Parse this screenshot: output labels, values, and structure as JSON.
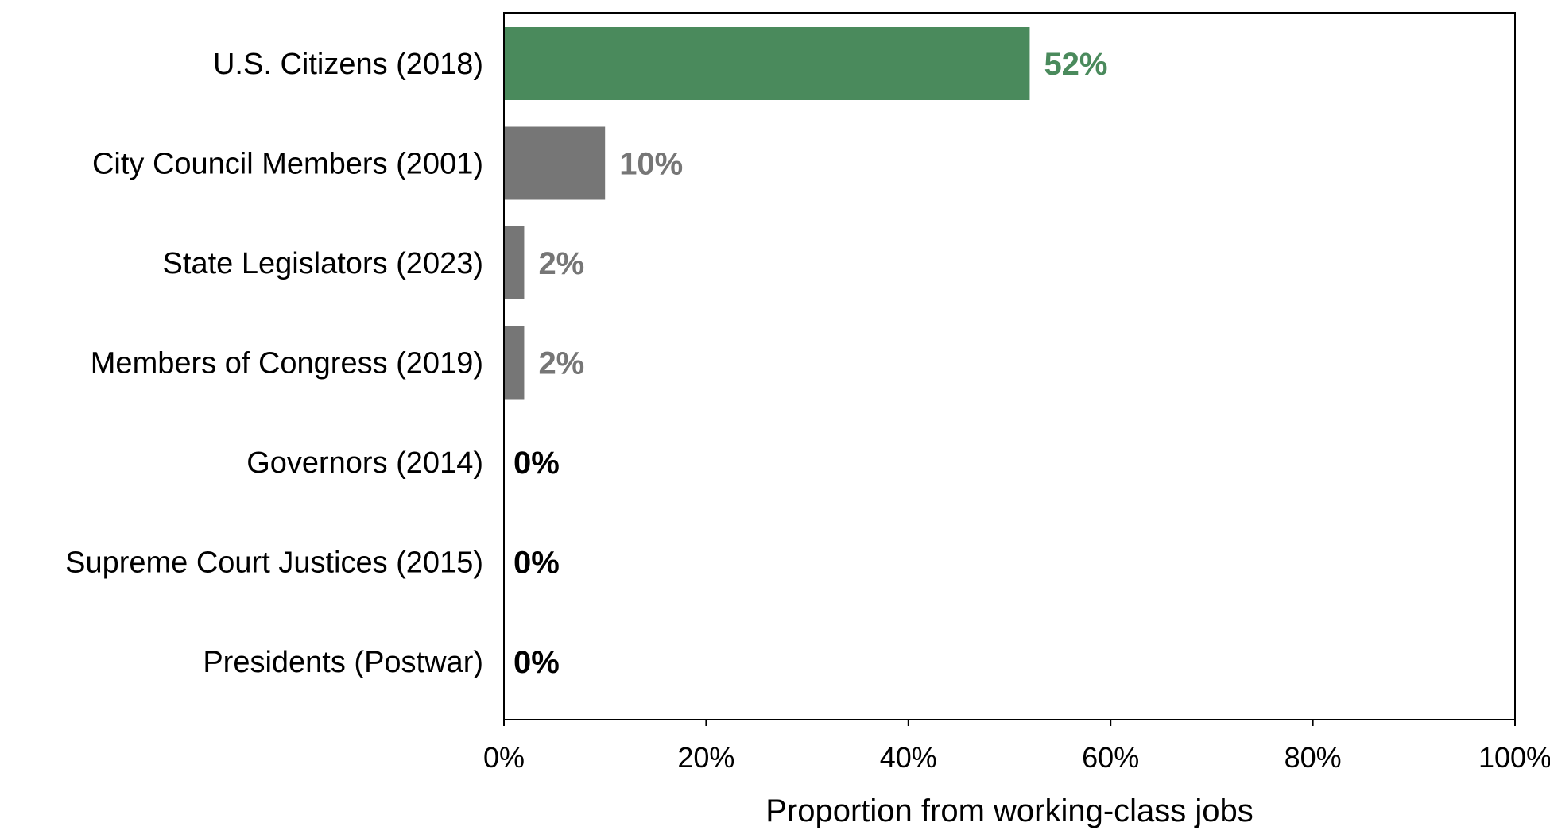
{
  "chart_data": {
    "type": "bar",
    "orientation": "horizontal",
    "categories": [
      "U.S. Citizens (2018)",
      "City Council Members (2001)",
      "State Legislators (2023)",
      "Members of Congress (2019)",
      "Governors (2014)",
      "Supreme Court Justices (2015)",
      "Presidents (Postwar)"
    ],
    "values": [
      52,
      10,
      2,
      2,
      0,
      0,
      0
    ],
    "value_labels": [
      "52%",
      "10%",
      "2%",
      "2%",
      "0%",
      "0%",
      "0%"
    ],
    "bar_colors": [
      "#4a8a5c",
      "#767676",
      "#767676",
      "#767676",
      "#767676",
      "#767676",
      "#767676"
    ],
    "label_colors": [
      "#4a8a5c",
      "#767676",
      "#767676",
      "#767676",
      "#000000",
      "#000000",
      "#000000"
    ],
    "xlim": [
      0,
      100
    ],
    "xticks": [
      0,
      20,
      40,
      60,
      80,
      100
    ],
    "xtick_labels": [
      "0%",
      "20%",
      "40%",
      "60%",
      "80%",
      "100%"
    ],
    "xlabel": "Proportion from working-class jobs",
    "ylabel": "",
    "title": "",
    "grid": false,
    "legend": "none"
  }
}
